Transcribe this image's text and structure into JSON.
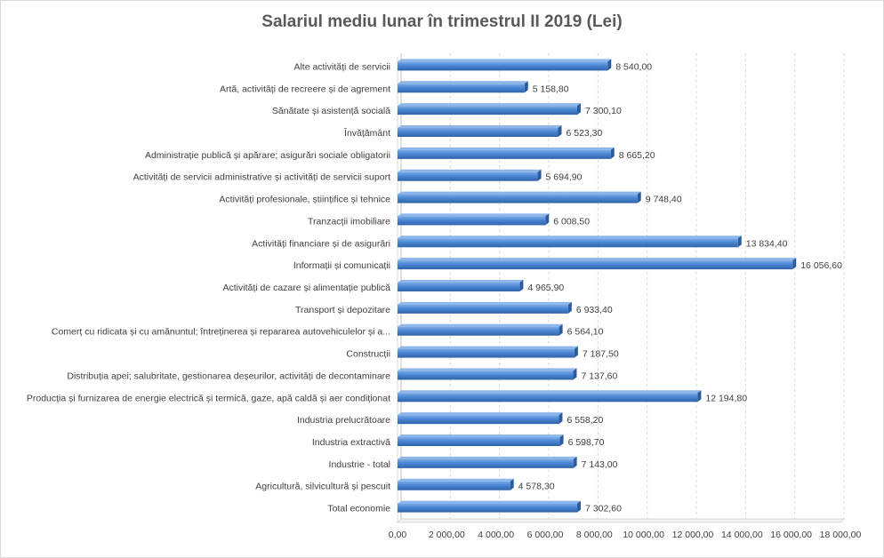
{
  "chart_data": {
    "type": "bar",
    "orientation": "horizontal",
    "title": "Salariul  mediu lunar în trimestrul  II 2019 (Lei)",
    "xlabel": "",
    "ylabel": "",
    "xlim": [
      0,
      18000
    ],
    "x_ticks": [
      0,
      2000,
      4000,
      6000,
      8000,
      10000,
      12000,
      14000,
      16000,
      18000
    ],
    "x_tick_labels": [
      "0,00",
      "2 000,00",
      "4 000,00",
      "6 000,00",
      "8 000,00",
      "10 000,00",
      "12 000,00",
      "14 000,00",
      "16 000,00",
      "18 000,00"
    ],
    "grid": "vertical dashed",
    "legend": "none",
    "bar_color": "#4a86d4",
    "categories": [
      "Alte activități de servicii",
      "Artă, activități de recreere și de agrement",
      "Sănătate și asistență socială",
      "Învățământ",
      "Administrație publică și apărare; asigurări sociale obligatorii",
      "Activități de servicii administrative și activități de servicii suport",
      "Activități profesionale, științifice și tehnice",
      "Tranzacții imobiliare",
      "Activități financiare și de asigurări",
      "Informații și comunicații",
      "Activități de cazare și alimentație publică",
      "Transport și depozitare",
      "Comerț cu ridicata și cu amănuntul; întreținerea și repararea autovehiculelor și a...",
      "Construcții",
      "Distribuția apei; salubritate, gestionarea deșeurilor, activități de decontaminare",
      "Producția și furnizarea de energie electrică și termică, gaze, apă caldă și aer condiționat",
      "Industria prelucrătoare",
      "Industria extractivă",
      "Industrie - total",
      "Agricultură, silvicultură și pescuit",
      "Total economie"
    ],
    "values": [
      8540.0,
      5158.8,
      7300.1,
      6523.3,
      8665.2,
      5694.9,
      9748.4,
      6008.5,
      13834.4,
      16056.6,
      4965.9,
      6933.4,
      6564.1,
      7187.5,
      7137.6,
      12194.8,
      6558.2,
      6598.7,
      7143.0,
      4578.3,
      7302.6
    ],
    "value_labels": [
      "8 540,00",
      "5 158,80",
      "7 300,10",
      "6 523,30",
      "8 665,20",
      "5 694,90",
      "9 748,40",
      "6 008,50",
      "13 834,40",
      "16 056,60",
      "4 965,90",
      "6 933,40",
      "6 564,10",
      "7 187,50",
      "7 137,60",
      "12 194,80",
      "6 558,20",
      "6 598,70",
      "7 143,00",
      "4 578,30",
      "7 302,60"
    ]
  }
}
